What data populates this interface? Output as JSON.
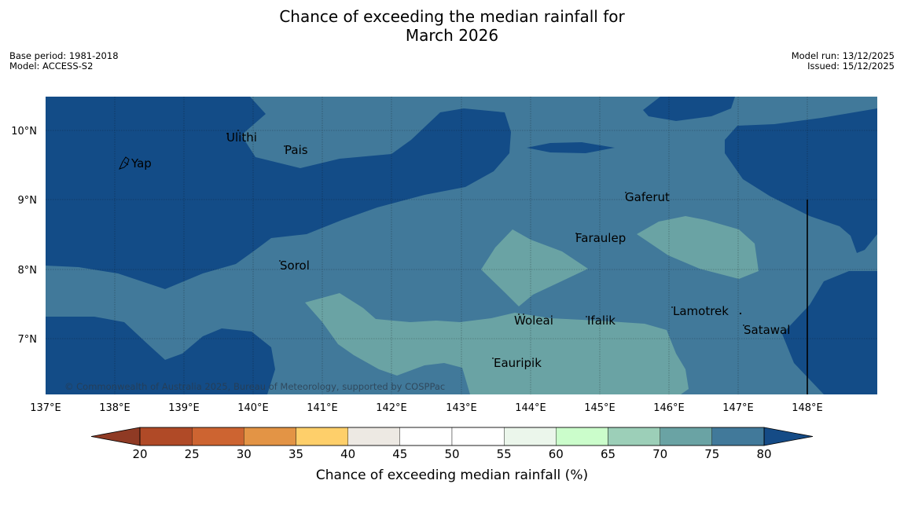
{
  "header": {
    "title_line1": "Chance of exceeding the median rainfall for",
    "title_line2": "March 2026",
    "base_period": "Base period: 1981-2018",
    "model": "Model: ACCESS-S2",
    "model_run": "Model run: 13/12/2025",
    "issued": "Issued: 15/12/2025"
  },
  "map": {
    "copyright": "© Commonwealth of Australia 2025, Bureau of Meteorology, supported by COSPPac",
    "lon_labels": [
      "137°E",
      "138°E",
      "139°E",
      "140°E",
      "141°E",
      "142°E",
      "143°E",
      "144°E",
      "145°E",
      "146°E",
      "147°E",
      "148°E"
    ],
    "lat_labels": [
      "10°N",
      "9°N",
      "8°N",
      "7°N"
    ],
    "places": [
      "Ulithi",
      "Pais",
      "Yap",
      "Gaferut",
      "Faraulep",
      "Sorol",
      "Lamotrek",
      "Woleai",
      "Ifalik",
      "Satawal",
      "Eauripik"
    ]
  },
  "colorbar": {
    "ticks": [
      "20",
      "25",
      "30",
      "35",
      "40",
      "45",
      "50",
      "55",
      "60",
      "65",
      "70",
      "75",
      "80"
    ],
    "label": "Chance of exceeding median rainfall (%)",
    "colors": [
      "#b04a27",
      "#cd6431",
      "#e39445",
      "#fecf6a",
      "#ede9e3",
      "#ffffff",
      "#ffffff",
      "#ebf6eb",
      "#cbfdcb",
      "#9ccfb8",
      "#6aa3a4",
      "#41799a"
    ],
    "low_extend_color": "#8f3a24",
    "high_extend_color": "#154b86"
  }
}
